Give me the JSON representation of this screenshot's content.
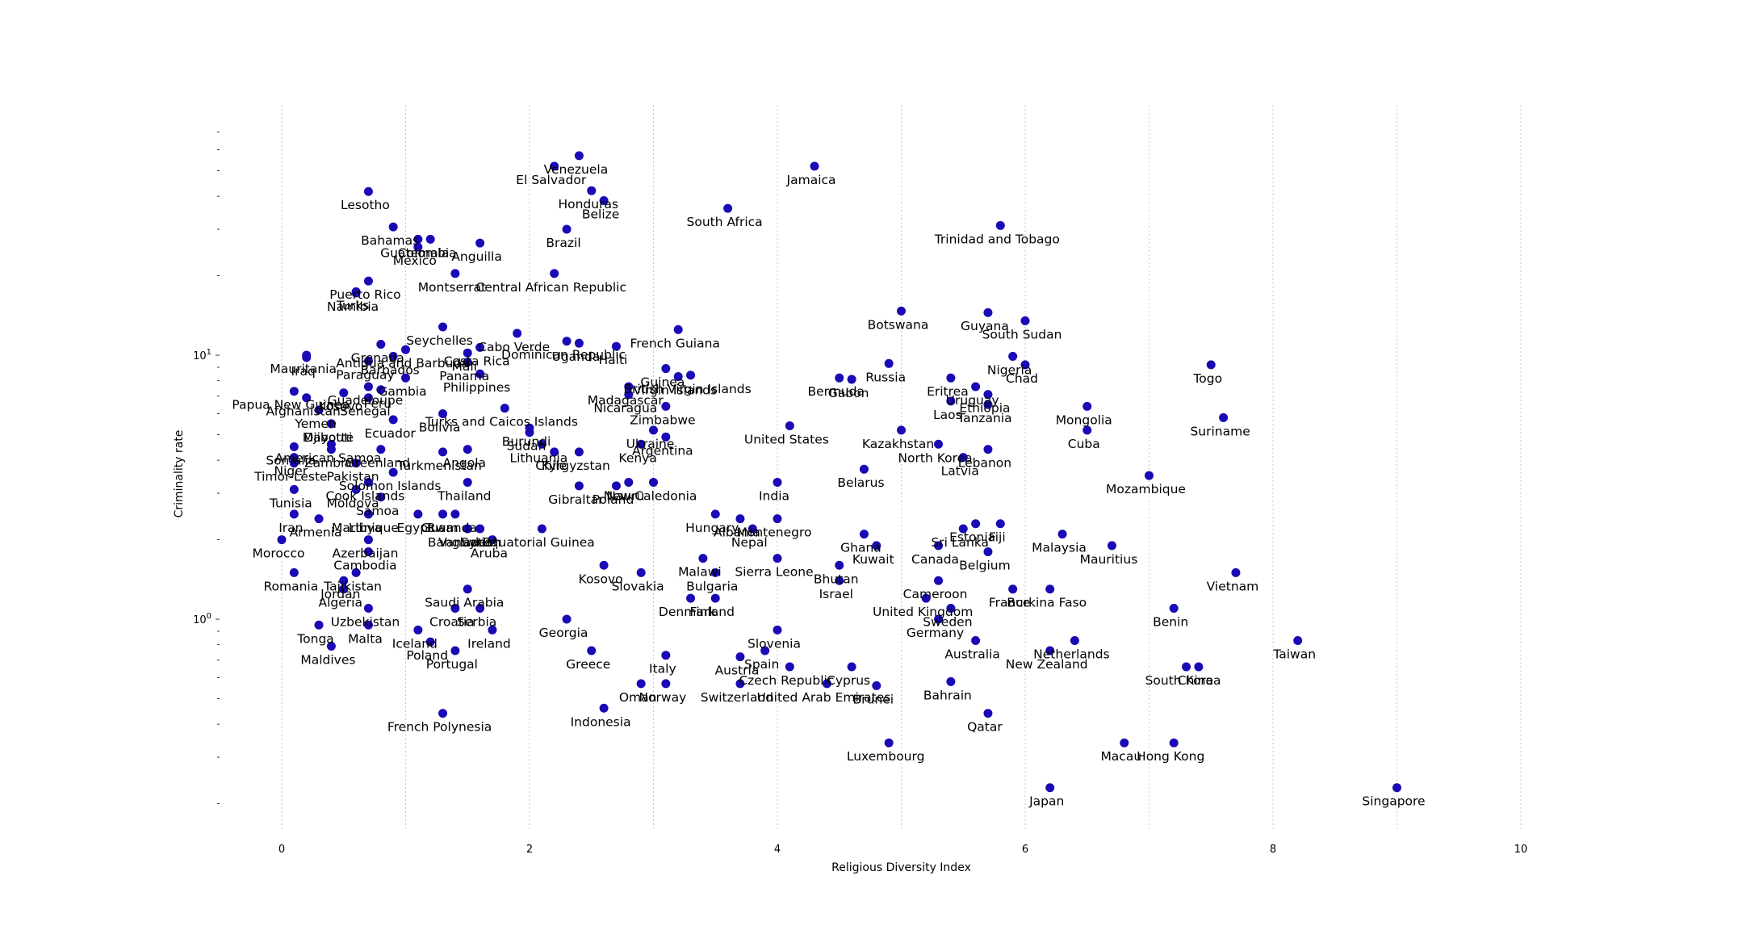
{
  "chart_data": {
    "type": "scatter",
    "xlabel": "Religious Diversity Index",
    "ylabel": "Criminality rate",
    "x_scale": "linear",
    "y_scale": "log",
    "xlim": [
      -0.5,
      10.6
    ],
    "ylim": [
      0.16,
      72
    ],
    "x_ticks": [
      0,
      2,
      4,
      6,
      8,
      10
    ],
    "x_tick_labels": [
      "0",
      "2",
      "4",
      "6",
      "8",
      "10"
    ],
    "y_major_ticks": [
      1,
      10
    ],
    "y_major_tick_labels": [
      "10^0",
      "10^1"
    ],
    "y_minor_ticks": [
      0.2,
      0.3,
      0.4,
      0.5,
      0.6,
      0.7,
      0.8,
      0.9,
      2,
      3,
      4,
      5,
      6,
      7,
      8,
      9,
      20,
      30,
      40,
      50,
      60,
      70
    ],
    "grid": "vertical dotted lines at x = 0, 1, 2 ... 10",
    "marker_color": "#1a0ab5",
    "points": [
      {
        "label": "El Salvador",
        "x": 2.2,
        "y": 52
      },
      {
        "label": "Venezuela",
        "x": 2.4,
        "y": 57
      },
      {
        "label": "Jamaica",
        "x": 4.3,
        "y": 52
      },
      {
        "label": "Lesotho",
        "x": 0.7,
        "y": 41.7
      },
      {
        "label": "Honduras",
        "x": 2.5,
        "y": 42
      },
      {
        "label": "Belize",
        "x": 2.6,
        "y": 38.5
      },
      {
        "label": "South Africa",
        "x": 3.6,
        "y": 36
      },
      {
        "label": "Bahamas",
        "x": 0.9,
        "y": 30.6
      },
      {
        "label": "Brazil",
        "x": 2.3,
        "y": 30
      },
      {
        "label": "Trinidad and Tobago",
        "x": 5.8,
        "y": 31
      },
      {
        "label": "Guatemala",
        "x": 1.1,
        "y": 27.5
      },
      {
        "label": "Mexico",
        "x": 1.1,
        "y": 25.7
      },
      {
        "label": "Colombia",
        "x": 1.2,
        "y": 27.5
      },
      {
        "label": "Anguilla",
        "x": 1.6,
        "y": 26.6
      },
      {
        "label": "Montserrat",
        "x": 1.4,
        "y": 20.4
      },
      {
        "label": "Central African Republic",
        "x": 2.2,
        "y": 20.4
      },
      {
        "label": "Puerto Rico",
        "x": 0.7,
        "y": 19.1
      },
      {
        "label": "Turks",
        "x": 0.6,
        "y": 17.4
      },
      {
        "label": "Namibia",
        "x": 0.6,
        "y": 17.2
      },
      {
        "label": "Botswana",
        "x": 5.0,
        "y": 14.7
      },
      {
        "label": "Guyana",
        "x": 5.7,
        "y": 14.5
      },
      {
        "label": "South Sudan",
        "x": 6.0,
        "y": 13.5
      },
      {
        "label": "Seychelles",
        "x": 1.3,
        "y": 12.8
      },
      {
        "label": "French Guiana",
        "x": 3.2,
        "y": 12.5
      },
      {
        "label": "Costa Rica",
        "x": 1.6,
        "y": 10.7
      },
      {
        "label": "Cabo Verde",
        "x": 1.9,
        "y": 12.1
      },
      {
        "label": "Dominican Republic",
        "x": 2.3,
        "y": 11.3
      },
      {
        "label": "Uganda",
        "x": 2.4,
        "y": 11.1
      },
      {
        "label": "Haiti",
        "x": 2.7,
        "y": 10.8
      },
      {
        "label": "Grenada",
        "x": 0.8,
        "y": 11
      },
      {
        "label": "Mali",
        "x": 1.5,
        "y": 10.2
      },
      {
        "label": "Antigua and Barbuda",
        "x": 1.0,
        "y": 10.5
      },
      {
        "label": "Barbados",
        "x": 0.9,
        "y": 9.9
      },
      {
        "label": "Panama",
        "x": 1.5,
        "y": 9.4
      },
      {
        "label": "Mauritania",
        "x": 0.2,
        "y": 10
      },
      {
        "label": "Iraq",
        "x": 0.2,
        "y": 9.8
      },
      {
        "label": "Paraguay",
        "x": 0.7,
        "y": 9.5
      },
      {
        "label": "Gambia",
        "x": 1.0,
        "y": 8.2
      },
      {
        "label": "Philippines",
        "x": 1.6,
        "y": 8.5
      },
      {
        "label": "Guadeloupe",
        "x": 0.7,
        "y": 7.6
      },
      {
        "label": "Peru",
        "x": 0.8,
        "y": 7.4
      },
      {
        "label": "Papua New Guinea",
        "x": 0.1,
        "y": 7.3
      },
      {
        "label": "Kosovo",
        "x": 0.5,
        "y": 7.2
      },
      {
        "label": "Senegal",
        "x": 0.7,
        "y": 6.9
      },
      {
        "label": "Guinea",
        "x": 3.1,
        "y": 8.9
      },
      {
        "label": "British Virgin Islands",
        "x": 3.3,
        "y": 8.4
      },
      {
        "label": "Virgin Islands",
        "x": 3.2,
        "y": 8.3
      },
      {
        "label": "Madagascar",
        "x": 2.8,
        "y": 7.6
      },
      {
        "label": "Nicaragua",
        "x": 2.8,
        "y": 7.1
      },
      {
        "label": "Zimbabwe",
        "x": 3.1,
        "y": 6.4
      },
      {
        "label": "Russia",
        "x": 4.9,
        "y": 9.3
      },
      {
        "label": "Bermuda",
        "x": 4.5,
        "y": 8.2
      },
      {
        "label": "Gabon",
        "x": 4.6,
        "y": 8.1
      },
      {
        "label": "Nigeria",
        "x": 5.9,
        "y": 9.9
      },
      {
        "label": "Chad",
        "x": 6.0,
        "y": 9.2
      },
      {
        "label": "Eritrea",
        "x": 5.4,
        "y": 8.2
      },
      {
        "label": "Uruguay",
        "x": 5.6,
        "y": 7.6
      },
      {
        "label": "Ethiopia",
        "x": 5.7,
        "y": 7.1
      },
      {
        "label": "Tanzania",
        "x": 5.7,
        "y": 6.5
      },
      {
        "label": "Laos",
        "x": 5.4,
        "y": 6.7
      },
      {
        "label": "Togo",
        "x": 7.5,
        "y": 9.2
      },
      {
        "label": "Mongolia",
        "x": 6.5,
        "y": 6.4
      },
      {
        "label": "Suriname",
        "x": 7.6,
        "y": 5.8
      },
      {
        "label": "Cuba",
        "x": 6.5,
        "y": 5.2
      },
      {
        "label": "Afghanistan",
        "x": 0.2,
        "y": 6.9
      },
      {
        "label": "Yemen",
        "x": 0.3,
        "y": 6.2
      },
      {
        "label": "Djibouti",
        "x": 0.4,
        "y": 5.5
      },
      {
        "label": "Mayotte",
        "x": 0.4,
        "y": 5.5
      },
      {
        "label": "Turks and Caicos Islands",
        "x": 1.8,
        "y": 6.3
      },
      {
        "label": "Burundi",
        "x": 2.0,
        "y": 5.3
      },
      {
        "label": "Bolivia",
        "x": 1.3,
        "y": 6
      },
      {
        "label": "Ecuador",
        "x": 0.9,
        "y": 5.7
      },
      {
        "label": "Sudan",
        "x": 2.0,
        "y": 5.1
      },
      {
        "label": "Ukraine",
        "x": 3.0,
        "y": 5.2
      },
      {
        "label": "Argentina",
        "x": 3.1,
        "y": 4.9
      },
      {
        "label": "Kenya",
        "x": 2.9,
        "y": 4.6
      },
      {
        "label": "United States",
        "x": 4.1,
        "y": 5.4
      },
      {
        "label": "Kazakhstan",
        "x": 5.0,
        "y": 5.2
      },
      {
        "label": "North Korea",
        "x": 5.3,
        "y": 4.6
      },
      {
        "label": "Latvia",
        "x": 5.5,
        "y": 4.1
      },
      {
        "label": "Lebanon",
        "x": 5.7,
        "y": 4.4
      },
      {
        "label": "American Samoa",
        "x": 0.4,
        "y": 4.6
      },
      {
        "label": "Zambia",
        "x": 0.4,
        "y": 4.4
      },
      {
        "label": "Greenland",
        "x": 0.8,
        "y": 4.4
      },
      {
        "label": "Angola",
        "x": 1.5,
        "y": 4.4
      },
      {
        "label": "Lithuania",
        "x": 2.1,
        "y": 4.6
      },
      {
        "label": "Chile",
        "x": 2.2,
        "y": 4.3
      },
      {
        "label": "Kyrgyzstan",
        "x": 2.4,
        "y": 4.3
      },
      {
        "label": "Somalia",
        "x": 0.1,
        "y": 4.5
      },
      {
        "label": "Niger",
        "x": 0.1,
        "y": 4.1
      },
      {
        "label": "Pakistan",
        "x": 0.6,
        "y": 3.9
      },
      {
        "label": "Turkmenistan",
        "x": 1.3,
        "y": 4.3
      },
      {
        "label": "Belarus",
        "x": 4.7,
        "y": 3.7
      },
      {
        "label": "Mozambique",
        "x": 7.0,
        "y": 3.5
      },
      {
        "label": "Timor-Leste",
        "x": 0.1,
        "y": 3.9
      },
      {
        "label": "Solomon Islands",
        "x": 0.9,
        "y": 3.6
      },
      {
        "label": "Cook Islands",
        "x": 0.7,
        "y": 3.3
      },
      {
        "label": "Thailand",
        "x": 1.5,
        "y": 3.3
      },
      {
        "label": "New Caledonia",
        "x": 3.0,
        "y": 3.3
      },
      {
        "label": "Nauru",
        "x": 2.8,
        "y": 3.3
      },
      {
        "label": "Poland",
        "x": 2.7,
        "y": 3.2
      },
      {
        "label": "Gibraltar",
        "x": 2.4,
        "y": 3.2
      },
      {
        "label": "India",
        "x": 4.0,
        "y": 3.3
      },
      {
        "label": "Tunisia",
        "x": 0.1,
        "y": 3.1
      },
      {
        "label": "Moldova",
        "x": 0.6,
        "y": 3.1
      },
      {
        "label": "Samoa",
        "x": 0.8,
        "y": 2.9
      },
      {
        "label": "Martinique",
        "x": 0.7,
        "y": 2.5
      },
      {
        "label": "Iran",
        "x": 0.1,
        "y": 2.5
      },
      {
        "label": "Armenia",
        "x": 0.3,
        "y": 2.4
      },
      {
        "label": "Libya",
        "x": 0.7,
        "y": 2.5
      },
      {
        "label": "Egypt",
        "x": 1.1,
        "y": 2.5
      },
      {
        "label": "Guam",
        "x": 1.3,
        "y": 2.5
      },
      {
        "label": "Rwanda",
        "x": 1.4,
        "y": 2.5
      },
      {
        "label": "Equatorial Guinea",
        "x": 2.1,
        "y": 2.2
      },
      {
        "label": "Syria",
        "x": 1.6,
        "y": 2.2
      },
      {
        "label": "Bangladesh",
        "x": 1.5,
        "y": 2.2
      },
      {
        "label": "Vanuatu",
        "x": 1.5,
        "y": 2.2
      },
      {
        "label": "Aruba",
        "x": 1.7,
        "y": 2
      },
      {
        "label": "Hungary",
        "x": 3.5,
        "y": 2.5
      },
      {
        "label": "Albania",
        "x": 3.7,
        "y": 2.4
      },
      {
        "label": "Montenegro",
        "x": 4.0,
        "y": 2.4
      },
      {
        "label": "Nepal",
        "x": 3.8,
        "y": 2.2
      },
      {
        "label": "Ghana",
        "x": 4.7,
        "y": 2.1
      },
      {
        "label": "Kuwait",
        "x": 4.8,
        "y": 1.9
      },
      {
        "label": "Sri Lanka",
        "x": 5.5,
        "y": 2.2
      },
      {
        "label": "Estonia",
        "x": 5.6,
        "y": 2.3
      },
      {
        "label": "Fiji",
        "x": 5.8,
        "y": 2.3
      },
      {
        "label": "Malaysia",
        "x": 6.3,
        "y": 2.1
      },
      {
        "label": "Mauritius",
        "x": 6.7,
        "y": 1.9
      },
      {
        "label": "Canada",
        "x": 5.3,
        "y": 1.9
      },
      {
        "label": "Belgium",
        "x": 5.7,
        "y": 1.8
      },
      {
        "label": "Vietnam",
        "x": 7.7,
        "y": 1.5
      },
      {
        "label": "Morocco",
        "x": 0.0,
        "y": 2
      },
      {
        "label": "Azerbaijan",
        "x": 0.7,
        "y": 2
      },
      {
        "label": "Cambodia",
        "x": 0.7,
        "y": 1.8
      },
      {
        "label": "Tajikistan",
        "x": 0.6,
        "y": 1.5
      },
      {
        "label": "Romania",
        "x": 0.1,
        "y": 1.5
      },
      {
        "label": "Jordan",
        "x": 0.5,
        "y": 1.4
      },
      {
        "label": "Algeria",
        "x": 0.5,
        "y": 1.3
      },
      {
        "label": "Kosovo",
        "x": 2.6,
        "y": 1.6
      },
      {
        "label": "Slovakia",
        "x": 2.9,
        "y": 1.5
      },
      {
        "label": "Malawi",
        "x": 3.4,
        "y": 1.7
      },
      {
        "label": "Sierra Leone",
        "x": 4.0,
        "y": 1.7
      },
      {
        "label": "Bulgaria",
        "x": 3.5,
        "y": 1.5
      },
      {
        "label": "Bhutan",
        "x": 4.5,
        "y": 1.6
      },
      {
        "label": "Israel",
        "x": 4.5,
        "y": 1.4
      },
      {
        "label": "Cameroon",
        "x": 5.3,
        "y": 1.4
      },
      {
        "label": "France",
        "x": 5.9,
        "y": 1.3
      },
      {
        "label": "Burkina Faso",
        "x": 6.2,
        "y": 1.3
      },
      {
        "label": "Saudi Arabia",
        "x": 1.5,
        "y": 1.3
      },
      {
        "label": "Denmark",
        "x": 3.3,
        "y": 1.2
      },
      {
        "label": "Finland",
        "x": 3.5,
        "y": 1.2
      },
      {
        "label": "United Kingdom",
        "x": 5.2,
        "y": 1.2
      },
      {
        "label": "Sweden",
        "x": 5.4,
        "y": 1.1
      },
      {
        "label": "Benin",
        "x": 7.2,
        "y": 1.1
      },
      {
        "label": "Uzbekistan",
        "x": 0.7,
        "y": 1.1
      },
      {
        "label": "Croatia",
        "x": 1.4,
        "y": 1.1
      },
      {
        "label": "Serbia",
        "x": 1.6,
        "y": 1.1
      },
      {
        "label": "Georgia",
        "x": 2.3,
        "y": 1.0
      },
      {
        "label": "Germany",
        "x": 5.3,
        "y": 1.0
      },
      {
        "label": "Tonga",
        "x": 0.3,
        "y": 0.95
      },
      {
        "label": "Malta",
        "x": 0.7,
        "y": 0.95
      },
      {
        "label": "Iceland",
        "x": 1.1,
        "y": 0.91
      },
      {
        "label": "Ireland",
        "x": 1.7,
        "y": 0.91
      },
      {
        "label": "Slovenia",
        "x": 4.0,
        "y": 0.91
      },
      {
        "label": "Australia",
        "x": 5.6,
        "y": 0.83
      },
      {
        "label": "Netherlands",
        "x": 6.4,
        "y": 0.83
      },
      {
        "label": "Taiwan",
        "x": 8.2,
        "y": 0.83
      },
      {
        "label": "Maldives",
        "x": 0.4,
        "y": 0.79
      },
      {
        "label": "Poland",
        "x": 1.2,
        "y": 0.82
      },
      {
        "label": "Portugal",
        "x": 1.4,
        "y": 0.76
      },
      {
        "label": "Greece",
        "x": 2.5,
        "y": 0.76
      },
      {
        "label": "Italy",
        "x": 3.1,
        "y": 0.73
      },
      {
        "label": "Austria",
        "x": 3.7,
        "y": 0.72
      },
      {
        "label": "Spain",
        "x": 3.9,
        "y": 0.76
      },
      {
        "label": "New Zealand",
        "x": 6.2,
        "y": 0.76
      },
      {
        "label": "Czech Republic",
        "x": 4.1,
        "y": 0.66
      },
      {
        "label": "Cyprus",
        "x": 4.6,
        "y": 0.66
      },
      {
        "label": "South Korea",
        "x": 7.3,
        "y": 0.66
      },
      {
        "label": "China",
        "x": 7.4,
        "y": 0.66
      },
      {
        "label": "Oman",
        "x": 2.9,
        "y": 0.57
      },
      {
        "label": "Norway",
        "x": 3.1,
        "y": 0.57
      },
      {
        "label": "Switzerland",
        "x": 3.7,
        "y": 0.57
      },
      {
        "label": "United Arab Emirates",
        "x": 4.4,
        "y": 0.57
      },
      {
        "label": "Brunei",
        "x": 4.8,
        "y": 0.56
      },
      {
        "label": "Bahrain",
        "x": 5.4,
        "y": 0.58
      },
      {
        "label": "Indonesia",
        "x": 2.6,
        "y": 0.46
      },
      {
        "label": "French Polynesia",
        "x": 1.3,
        "y": 0.44
      },
      {
        "label": "Qatar",
        "x": 5.7,
        "y": 0.44
      },
      {
        "label": "Luxembourg",
        "x": 4.9,
        "y": 0.34
      },
      {
        "label": "Macau",
        "x": 6.8,
        "y": 0.34
      },
      {
        "label": "Hong Kong",
        "x": 7.2,
        "y": 0.34
      },
      {
        "label": "Japan",
        "x": 6.2,
        "y": 0.23
      },
      {
        "label": "Singapore",
        "x": 9.0,
        "y": 0.23
      }
    ]
  }
}
